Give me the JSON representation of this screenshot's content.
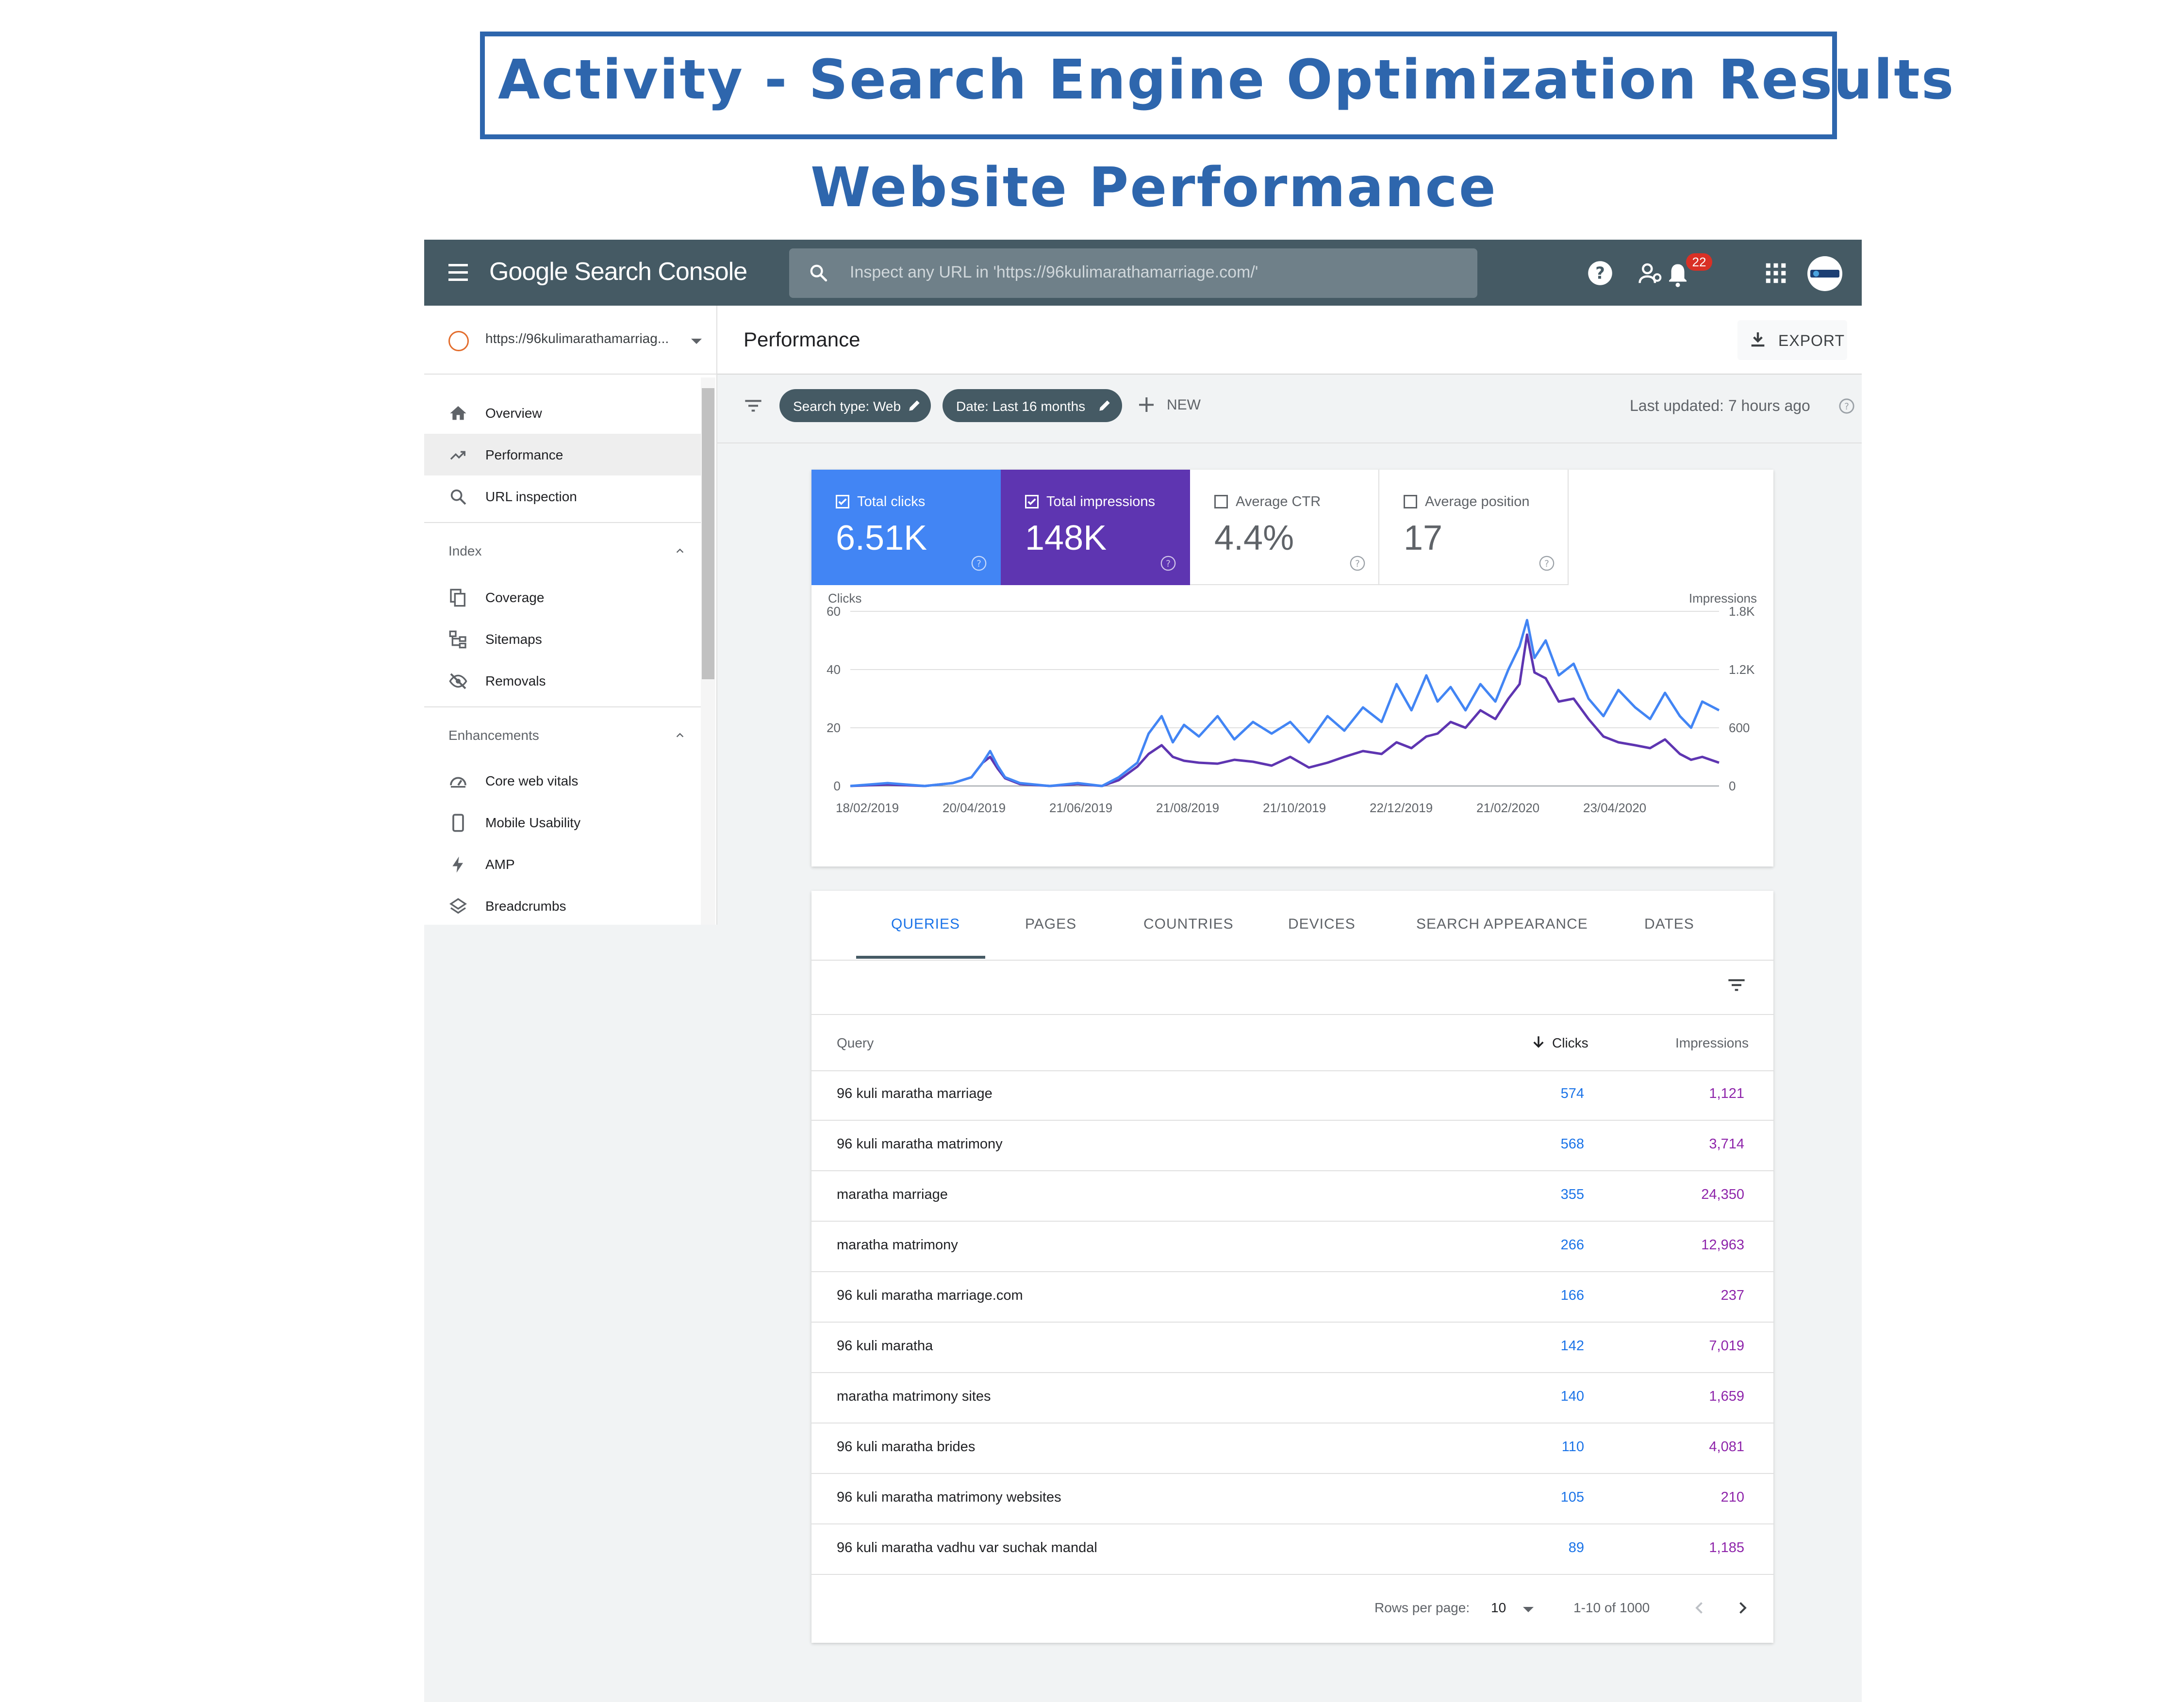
{
  "heading": {
    "title": "Activity - Search Engine Optimization Results",
    "subtitle": "Website Performance"
  },
  "topbar": {
    "brand": "Google Search Console",
    "search_placeholder": "Inspect any URL in 'https://96kulimarathamarriage.com/'",
    "notification_count": "22",
    "icons": [
      "menu-icon",
      "search-icon",
      "help-icon",
      "manage-users-icon",
      "notifications-icon",
      "apps-icon",
      "account-avatar"
    ]
  },
  "sidebar": {
    "property": "https://96kulimarathamarriag...",
    "main_items": [
      {
        "label": "Overview",
        "icon": "home-icon"
      },
      {
        "label": "Performance",
        "icon": "trending-up-icon",
        "active": true
      },
      {
        "label": "URL inspection",
        "icon": "search-icon"
      }
    ],
    "index": {
      "title": "Index",
      "items": [
        {
          "label": "Coverage",
          "icon": "file-copy-icon"
        },
        {
          "label": "Sitemaps",
          "icon": "sitemap-icon"
        },
        {
          "label": "Removals",
          "icon": "visibility-off-icon"
        }
      ]
    },
    "enhancements": {
      "title": "Enhancements",
      "items": [
        {
          "label": "Core web vitals",
          "icon": "speed-icon"
        },
        {
          "label": "Mobile Usability",
          "icon": "smartphone-icon"
        },
        {
          "label": "AMP",
          "icon": "bolt-icon"
        },
        {
          "label": "Breadcrumbs",
          "icon": "layers-icon"
        }
      ]
    }
  },
  "header": {
    "title": "Performance",
    "export_label": "EXPORT"
  },
  "filters": {
    "chips": [
      "Search type: Web",
      "Date: Last 16 months"
    ],
    "new_label": "NEW",
    "last_updated": "Last updated: 7 hours ago"
  },
  "metrics": [
    {
      "label": "Total clicks",
      "value": "6.51K",
      "checked": true,
      "color": "#4285f4"
    },
    {
      "label": "Total impressions",
      "value": "148K",
      "checked": true,
      "color": "#5e35b1"
    },
    {
      "label": "Average CTR",
      "value": "4.4%",
      "checked": false
    },
    {
      "label": "Average position",
      "value": "17",
      "checked": false
    }
  ],
  "chart_data": {
    "type": "line",
    "title": "",
    "y_left_label": "Clicks",
    "y_right_label": "Impressions",
    "y_left_ticks": [
      "60",
      "40",
      "20",
      "0"
    ],
    "y_right_ticks": [
      "1.8K",
      "1.2K",
      "600",
      "0"
    ],
    "ylim_left": [
      0,
      60
    ],
    "ylim_right": [
      0,
      1800
    ],
    "x_ticks": [
      "18/02/2019",
      "20/04/2019",
      "21/06/2019",
      "21/08/2019",
      "21/10/2019",
      "22/12/2019",
      "21/02/2020",
      "23/04/2020"
    ],
    "x_range": [
      "2019-02-18",
      "2020-05-29"
    ],
    "legend": "none",
    "grid": true,
    "series": [
      {
        "name": "Clicks",
        "color": "#4285f4",
        "points": [
          [
            "2019-02-18",
            0
          ],
          [
            "2019-03-10",
            1
          ],
          [
            "2019-03-30",
            0
          ],
          [
            "2019-04-14",
            1
          ],
          [
            "2019-04-24",
            3
          ],
          [
            "2019-04-30",
            8
          ],
          [
            "2019-05-04",
            12
          ],
          [
            "2019-05-08",
            7
          ],
          [
            "2019-05-12",
            3
          ],
          [
            "2019-05-20",
            1
          ],
          [
            "2019-06-05",
            0
          ],
          [
            "2019-06-20",
            1
          ],
          [
            "2019-07-03",
            0
          ],
          [
            "2019-07-12",
            3
          ],
          [
            "2019-07-22",
            8
          ],
          [
            "2019-07-28",
            18
          ],
          [
            "2019-08-04",
            24
          ],
          [
            "2019-08-10",
            15
          ],
          [
            "2019-08-16",
            21
          ],
          [
            "2019-08-24",
            17
          ],
          [
            "2019-09-03",
            24
          ],
          [
            "2019-09-12",
            16
          ],
          [
            "2019-09-22",
            22
          ],
          [
            "2019-10-02",
            18
          ],
          [
            "2019-10-12",
            22
          ],
          [
            "2019-10-22",
            15
          ],
          [
            "2019-11-01",
            24
          ],
          [
            "2019-11-10",
            19
          ],
          [
            "2019-11-20",
            27
          ],
          [
            "2019-11-30",
            22
          ],
          [
            "2019-12-08",
            35
          ],
          [
            "2019-12-16",
            26
          ],
          [
            "2019-12-24",
            38
          ],
          [
            "2019-12-30",
            29
          ],
          [
            "2020-01-06",
            34
          ],
          [
            "2020-01-14",
            26
          ],
          [
            "2020-01-22",
            35
          ],
          [
            "2020-01-30",
            29
          ],
          [
            "2020-02-06",
            40
          ],
          [
            "2020-02-12",
            48
          ],
          [
            "2020-02-16",
            57
          ],
          [
            "2020-02-20",
            44
          ],
          [
            "2020-02-26",
            50
          ],
          [
            "2020-03-04",
            38
          ],
          [
            "2020-03-12",
            42
          ],
          [
            "2020-03-20",
            30
          ],
          [
            "2020-03-28",
            24
          ],
          [
            "2020-04-05",
            33
          ],
          [
            "2020-04-14",
            27
          ],
          [
            "2020-04-22",
            23
          ],
          [
            "2020-04-30",
            32
          ],
          [
            "2020-05-08",
            24
          ],
          [
            "2020-05-14",
            20
          ],
          [
            "2020-05-20",
            29
          ],
          [
            "2020-05-29",
            26
          ]
        ]
      },
      {
        "name": "Impressions",
        "color": "#5e35b1",
        "points": [
          [
            "2019-02-18",
            0
          ],
          [
            "2019-03-10",
            15
          ],
          [
            "2019-03-30",
            0
          ],
          [
            "2019-04-14",
            30
          ],
          [
            "2019-04-24",
            90
          ],
          [
            "2019-04-30",
            240
          ],
          [
            "2019-05-04",
            300
          ],
          [
            "2019-05-08",
            180
          ],
          [
            "2019-05-12",
            80
          ],
          [
            "2019-05-20",
            20
          ],
          [
            "2019-06-05",
            0
          ],
          [
            "2019-06-20",
            20
          ],
          [
            "2019-07-03",
            0
          ],
          [
            "2019-07-12",
            60
          ],
          [
            "2019-07-22",
            200
          ],
          [
            "2019-07-28",
            330
          ],
          [
            "2019-08-04",
            420
          ],
          [
            "2019-08-10",
            300
          ],
          [
            "2019-08-16",
            260
          ],
          [
            "2019-08-24",
            240
          ],
          [
            "2019-09-03",
            230
          ],
          [
            "2019-09-12",
            270
          ],
          [
            "2019-09-22",
            250
          ],
          [
            "2019-10-02",
            210
          ],
          [
            "2019-10-12",
            300
          ],
          [
            "2019-10-22",
            190
          ],
          [
            "2019-11-01",
            240
          ],
          [
            "2019-11-10",
            300
          ],
          [
            "2019-11-20",
            360
          ],
          [
            "2019-11-30",
            330
          ],
          [
            "2019-12-08",
            450
          ],
          [
            "2019-12-16",
            390
          ],
          [
            "2019-12-24",
            510
          ],
          [
            "2019-12-30",
            540
          ],
          [
            "2020-01-06",
            660
          ],
          [
            "2020-01-14",
            600
          ],
          [
            "2020-01-22",
            780
          ],
          [
            "2020-01-30",
            690
          ],
          [
            "2020-02-06",
            900
          ],
          [
            "2020-02-12",
            1050
          ],
          [
            "2020-02-16",
            1560
          ],
          [
            "2020-02-20",
            1170
          ],
          [
            "2020-02-26",
            1110
          ],
          [
            "2020-03-04",
            870
          ],
          [
            "2020-03-12",
            900
          ],
          [
            "2020-03-20",
            690
          ],
          [
            "2020-03-28",
            510
          ],
          [
            "2020-04-05",
            450
          ],
          [
            "2020-04-14",
            420
          ],
          [
            "2020-04-22",
            390
          ],
          [
            "2020-04-30",
            480
          ],
          [
            "2020-05-08",
            330
          ],
          [
            "2020-05-14",
            270
          ],
          [
            "2020-05-20",
            300
          ],
          [
            "2020-05-29",
            240
          ]
        ]
      }
    ]
  },
  "tabs": [
    {
      "label": "QUERIES",
      "active": true
    },
    {
      "label": "PAGES"
    },
    {
      "label": "COUNTRIES"
    },
    {
      "label": "DEVICES"
    },
    {
      "label": "SEARCH APPEARANCE"
    },
    {
      "label": "DATES"
    }
  ],
  "table": {
    "columns": {
      "query": "Query",
      "clicks": "Clicks",
      "impressions": "Impressions"
    },
    "rows": [
      {
        "query": "96 kuli maratha marriage",
        "clicks": "574",
        "impressions": "1,121"
      },
      {
        "query": "96 kuli maratha matrimony",
        "clicks": "568",
        "impressions": "3,714"
      },
      {
        "query": "maratha marriage",
        "clicks": "355",
        "impressions": "24,350"
      },
      {
        "query": "maratha matrimony",
        "clicks": "266",
        "impressions": "12,963"
      },
      {
        "query": "96 kuli maratha marriage.com",
        "clicks": "166",
        "impressions": "237"
      },
      {
        "query": "96 kuli maratha",
        "clicks": "142",
        "impressions": "7,019"
      },
      {
        "query": "maratha matrimony sites",
        "clicks": "140",
        "impressions": "1,659"
      },
      {
        "query": "96 kuli maratha brides",
        "clicks": "110",
        "impressions": "4,081"
      },
      {
        "query": "96 kuli maratha matrimony websites",
        "clicks": "105",
        "impressions": "210"
      },
      {
        "query": "96 kuli maratha vadhu var suchak mandal",
        "clicks": "89",
        "impressions": "1,185"
      }
    ],
    "footer": {
      "rows_per_page_label": "Rows per page:",
      "rows_per_page": "10",
      "range": "1-10 of 1000"
    }
  }
}
